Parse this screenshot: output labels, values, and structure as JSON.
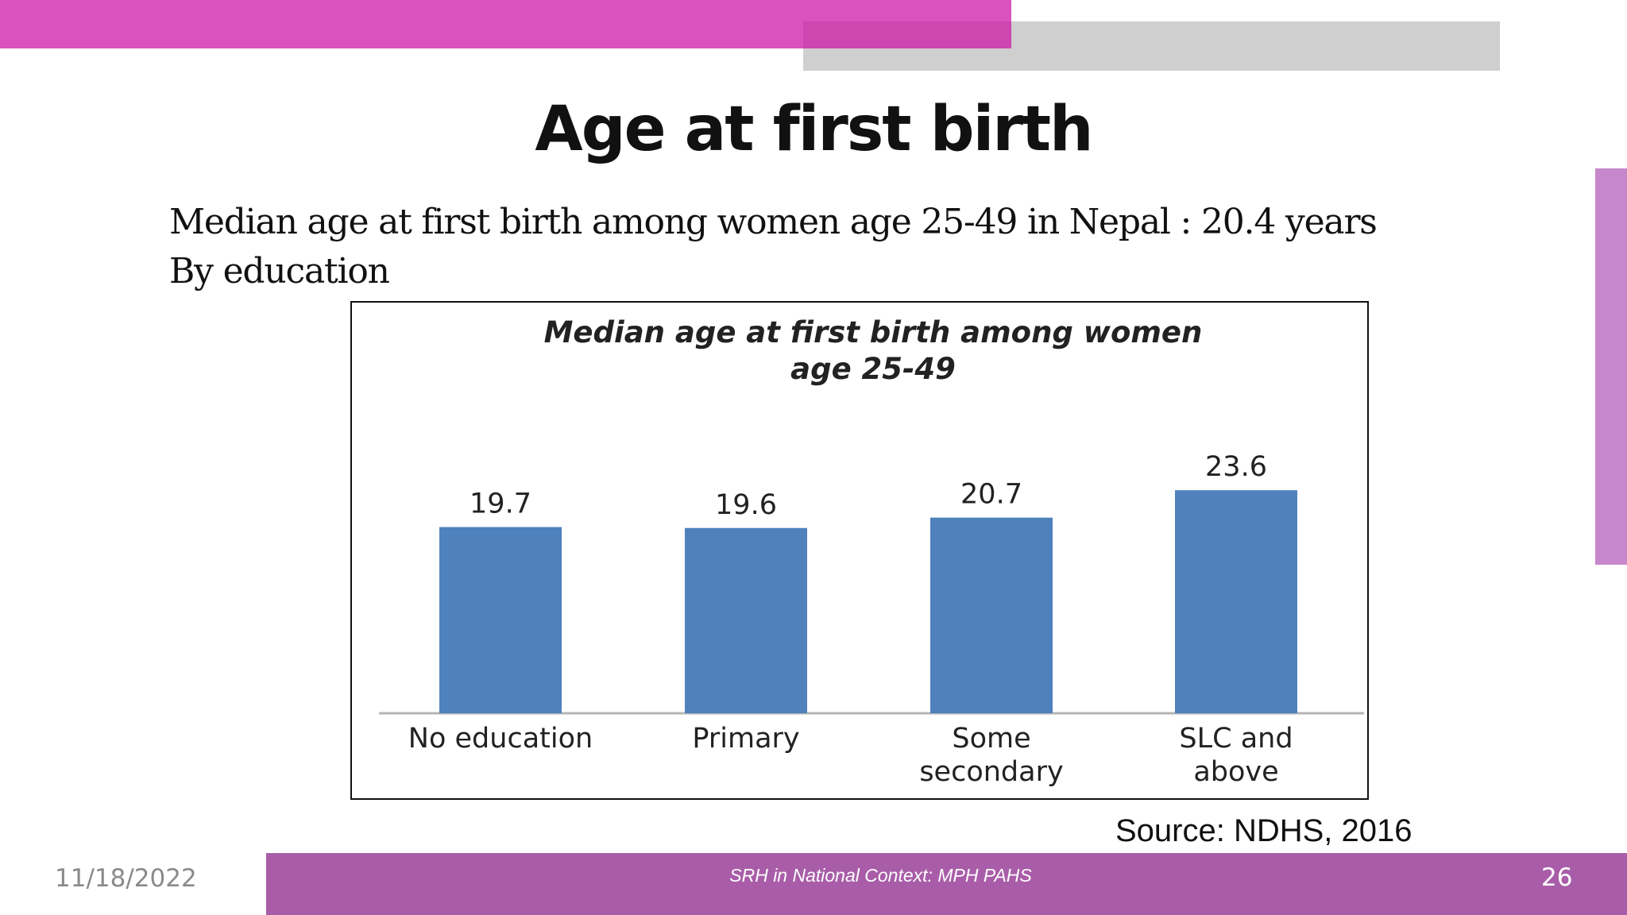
{
  "slide": {
    "title": "Age at first birth",
    "line1": "Median age at first birth among women age 25-49 in Nepal : 20.4 years",
    "line2": "By education",
    "source": "Source:  NDHS, 2016"
  },
  "footer": {
    "date": "11/18/2022",
    "center": "SRH in National Context: MPH PAHS",
    "page": "26"
  },
  "colors": {
    "accent_pink": "#d952bd",
    "accent_gray": "#cfcfcf",
    "footer_purple": "#a95da8",
    "side_bar": "#c787cc",
    "bar_fill": "#4f81bd"
  },
  "chart_data": {
    "type": "bar",
    "title_lines": [
      "Median age at first birth among women",
      "age 25-49"
    ],
    "categories": [
      [
        "No education"
      ],
      [
        "Primary"
      ],
      [
        "Some",
        "secondary"
      ],
      [
        "SLC and",
        "above"
      ]
    ],
    "values": [
      19.7,
      19.6,
      20.7,
      23.6
    ],
    "data_labels": [
      "19.7",
      "19.6",
      "20.7",
      "23.6"
    ],
    "xlabel": "",
    "ylabel": "",
    "grid": false,
    "legend": "none"
  }
}
